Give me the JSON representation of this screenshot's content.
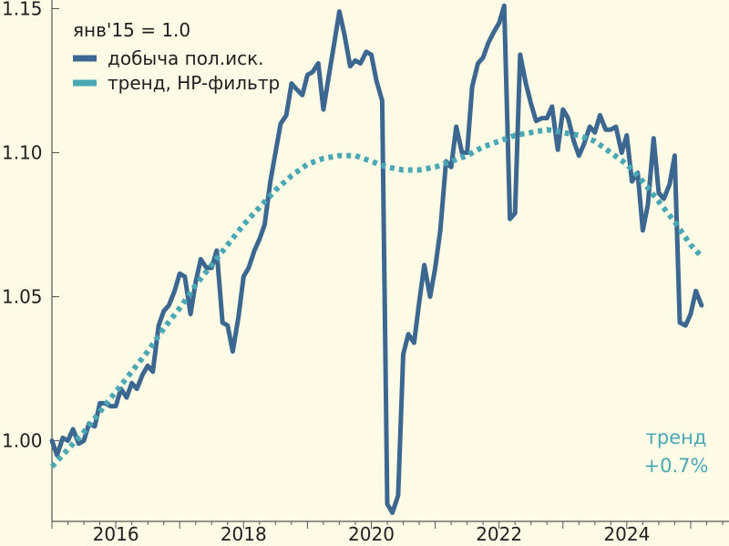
{
  "chart_data": {
    "type": "line",
    "legend_title": "янв'15 = 1.0",
    "legend_position": "top-left",
    "grid": false,
    "xlim": [
      2015.0,
      2025.6
    ],
    "ylim": [
      0.972,
      1.153
    ],
    "x_ticks": [
      {
        "value": 2016,
        "label": "2016"
      },
      {
        "value": 2018,
        "label": "2018"
      },
      {
        "value": 2020,
        "label": "2020"
      },
      {
        "value": 2022,
        "label": "2022"
      },
      {
        "value": 2024,
        "label": "2024"
      }
    ],
    "y_ticks": [
      {
        "value": 1.0,
        "label": "1.00"
      },
      {
        "value": 1.05,
        "label": "1.05"
      },
      {
        "value": 1.1,
        "label": "1.10"
      },
      {
        "value": 1.15,
        "label": "1.15"
      }
    ],
    "series": [
      {
        "name": "добыча пол.иск.",
        "color": "#3b6791",
        "style": "solid",
        "points": [
          [
            2015.0,
            1.0
          ],
          [
            2015.08,
            0.995
          ],
          [
            2015.17,
            1.001
          ],
          [
            2015.25,
            1.0
          ],
          [
            2015.33,
            1.004
          ],
          [
            2015.42,
            0.999
          ],
          [
            2015.5,
            1.0
          ],
          [
            2015.58,
            1.006
          ],
          [
            2015.67,
            1.005
          ],
          [
            2015.75,
            1.013
          ],
          [
            2015.83,
            1.013
          ],
          [
            2015.92,
            1.012
          ],
          [
            2016.0,
            1.012
          ],
          [
            2016.08,
            1.018
          ],
          [
            2016.17,
            1.015
          ],
          [
            2016.25,
            1.02
          ],
          [
            2016.33,
            1.018
          ],
          [
            2016.42,
            1.023
          ],
          [
            2016.5,
            1.026
          ],
          [
            2016.58,
            1.024
          ],
          [
            2016.67,
            1.04
          ],
          [
            2016.75,
            1.045
          ],
          [
            2016.83,
            1.047
          ],
          [
            2016.92,
            1.052
          ],
          [
            2017.0,
            1.058
          ],
          [
            2017.08,
            1.057
          ],
          [
            2017.17,
            1.044
          ],
          [
            2017.25,
            1.055
          ],
          [
            2017.33,
            1.063
          ],
          [
            2017.42,
            1.06
          ],
          [
            2017.5,
            1.06
          ],
          [
            2017.58,
            1.066
          ],
          [
            2017.67,
            1.041
          ],
          [
            2017.75,
            1.04
          ],
          [
            2017.83,
            1.031
          ],
          [
            2017.92,
            1.043
          ],
          [
            2018.0,
            1.057
          ],
          [
            2018.08,
            1.06
          ],
          [
            2018.17,
            1.066
          ],
          [
            2018.25,
            1.07
          ],
          [
            2018.33,
            1.075
          ],
          [
            2018.42,
            1.09
          ],
          [
            2018.5,
            1.1
          ],
          [
            2018.58,
            1.11
          ],
          [
            2018.67,
            1.113
          ],
          [
            2018.75,
            1.124
          ],
          [
            2018.83,
            1.122
          ],
          [
            2018.92,
            1.12
          ],
          [
            2019.0,
            1.127
          ],
          [
            2019.08,
            1.128
          ],
          [
            2019.17,
            1.131
          ],
          [
            2019.25,
            1.115
          ],
          [
            2019.33,
            1.126
          ],
          [
            2019.42,
            1.138
          ],
          [
            2019.5,
            1.149
          ],
          [
            2019.58,
            1.141
          ],
          [
            2019.67,
            1.13
          ],
          [
            2019.75,
            1.132
          ],
          [
            2019.83,
            1.131
          ],
          [
            2019.92,
            1.135
          ],
          [
            2020.0,
            1.134
          ],
          [
            2020.08,
            1.125
          ],
          [
            2020.17,
            1.118
          ],
          [
            2020.25,
            0.978
          ],
          [
            2020.33,
            0.975
          ],
          [
            2020.42,
            0.981
          ],
          [
            2020.5,
            1.03
          ],
          [
            2020.58,
            1.037
          ],
          [
            2020.67,
            1.034
          ],
          [
            2020.75,
            1.048
          ],
          [
            2020.83,
            1.061
          ],
          [
            2020.92,
            1.05
          ],
          [
            2021.0,
            1.06
          ],
          [
            2021.08,
            1.073
          ],
          [
            2021.17,
            1.097
          ],
          [
            2021.25,
            1.095
          ],
          [
            2021.33,
            1.109
          ],
          [
            2021.42,
            1.1
          ],
          [
            2021.5,
            1.1
          ],
          [
            2021.58,
            1.123
          ],
          [
            2021.67,
            1.131
          ],
          [
            2021.75,
            1.133
          ],
          [
            2021.83,
            1.138
          ],
          [
            2021.92,
            1.142
          ],
          [
            2022.0,
            1.145
          ],
          [
            2022.08,
            1.151
          ],
          [
            2022.17,
            1.077
          ],
          [
            2022.25,
            1.079
          ],
          [
            2022.33,
            1.134
          ],
          [
            2022.42,
            1.124
          ],
          [
            2022.5,
            1.117
          ],
          [
            2022.58,
            1.111
          ],
          [
            2022.67,
            1.112
          ],
          [
            2022.75,
            1.112
          ],
          [
            2022.83,
            1.116
          ],
          [
            2022.92,
            1.101
          ],
          [
            2023.0,
            1.115
          ],
          [
            2023.08,
            1.112
          ],
          [
            2023.17,
            1.104
          ],
          [
            2023.25,
            1.099
          ],
          [
            2023.33,
            1.103
          ],
          [
            2023.42,
            1.109
          ],
          [
            2023.5,
            1.107
          ],
          [
            2023.58,
            1.113
          ],
          [
            2023.67,
            1.108
          ],
          [
            2023.75,
            1.108
          ],
          [
            2023.83,
            1.109
          ],
          [
            2023.92,
            1.1
          ],
          [
            2024.0,
            1.106
          ],
          [
            2024.08,
            1.09
          ],
          [
            2024.17,
            1.093
          ],
          [
            2024.25,
            1.073
          ],
          [
            2024.33,
            1.082
          ],
          [
            2024.42,
            1.105
          ],
          [
            2024.5,
            1.086
          ],
          [
            2024.58,
            1.084
          ],
          [
            2024.67,
            1.089
          ],
          [
            2024.75,
            1.099
          ],
          [
            2024.83,
            1.041
          ],
          [
            2024.92,
            1.04
          ],
          [
            2025.0,
            1.044
          ],
          [
            2025.08,
            1.052
          ],
          [
            2025.17,
            1.047
          ]
        ]
      },
      {
        "name": "тренд, HP-фильтр",
        "color": "#4aa8b5",
        "style": "dotted",
        "points": [
          [
            2015.0,
            0.991
          ],
          [
            2015.25,
            0.997
          ],
          [
            2015.5,
            1.003
          ],
          [
            2015.75,
            1.01
          ],
          [
            2016.0,
            1.017
          ],
          [
            2016.25,
            1.024
          ],
          [
            2016.5,
            1.031
          ],
          [
            2016.75,
            1.039
          ],
          [
            2017.0,
            1.046
          ],
          [
            2017.25,
            1.054
          ],
          [
            2017.5,
            1.061
          ],
          [
            2017.75,
            1.068
          ],
          [
            2018.0,
            1.075
          ],
          [
            2018.25,
            1.081
          ],
          [
            2018.5,
            1.087
          ],
          [
            2018.75,
            1.092
          ],
          [
            2019.0,
            1.096
          ],
          [
            2019.25,
            1.098
          ],
          [
            2019.5,
            1.099
          ],
          [
            2019.75,
            1.099
          ],
          [
            2020.0,
            1.097
          ],
          [
            2020.25,
            1.095
          ],
          [
            2020.5,
            1.094
          ],
          [
            2020.75,
            1.094
          ],
          [
            2021.0,
            1.095
          ],
          [
            2021.25,
            1.097
          ],
          [
            2021.5,
            1.099
          ],
          [
            2021.75,
            1.102
          ],
          [
            2022.0,
            1.104
          ],
          [
            2022.25,
            1.106
          ],
          [
            2022.5,
            1.107
          ],
          [
            2022.75,
            1.108
          ],
          [
            2023.0,
            1.107
          ],
          [
            2023.25,
            1.106
          ],
          [
            2023.5,
            1.104
          ],
          [
            2023.75,
            1.1
          ],
          [
            2024.0,
            1.096
          ],
          [
            2024.25,
            1.09
          ],
          [
            2024.5,
            1.083
          ],
          [
            2024.75,
            1.076
          ],
          [
            2025.0,
            1.068
          ],
          [
            2025.17,
            1.064
          ]
        ]
      }
    ],
    "annotation": {
      "lines": [
        "тренд",
        "+0.7%"
      ],
      "color": "#4aa8b5"
    }
  }
}
